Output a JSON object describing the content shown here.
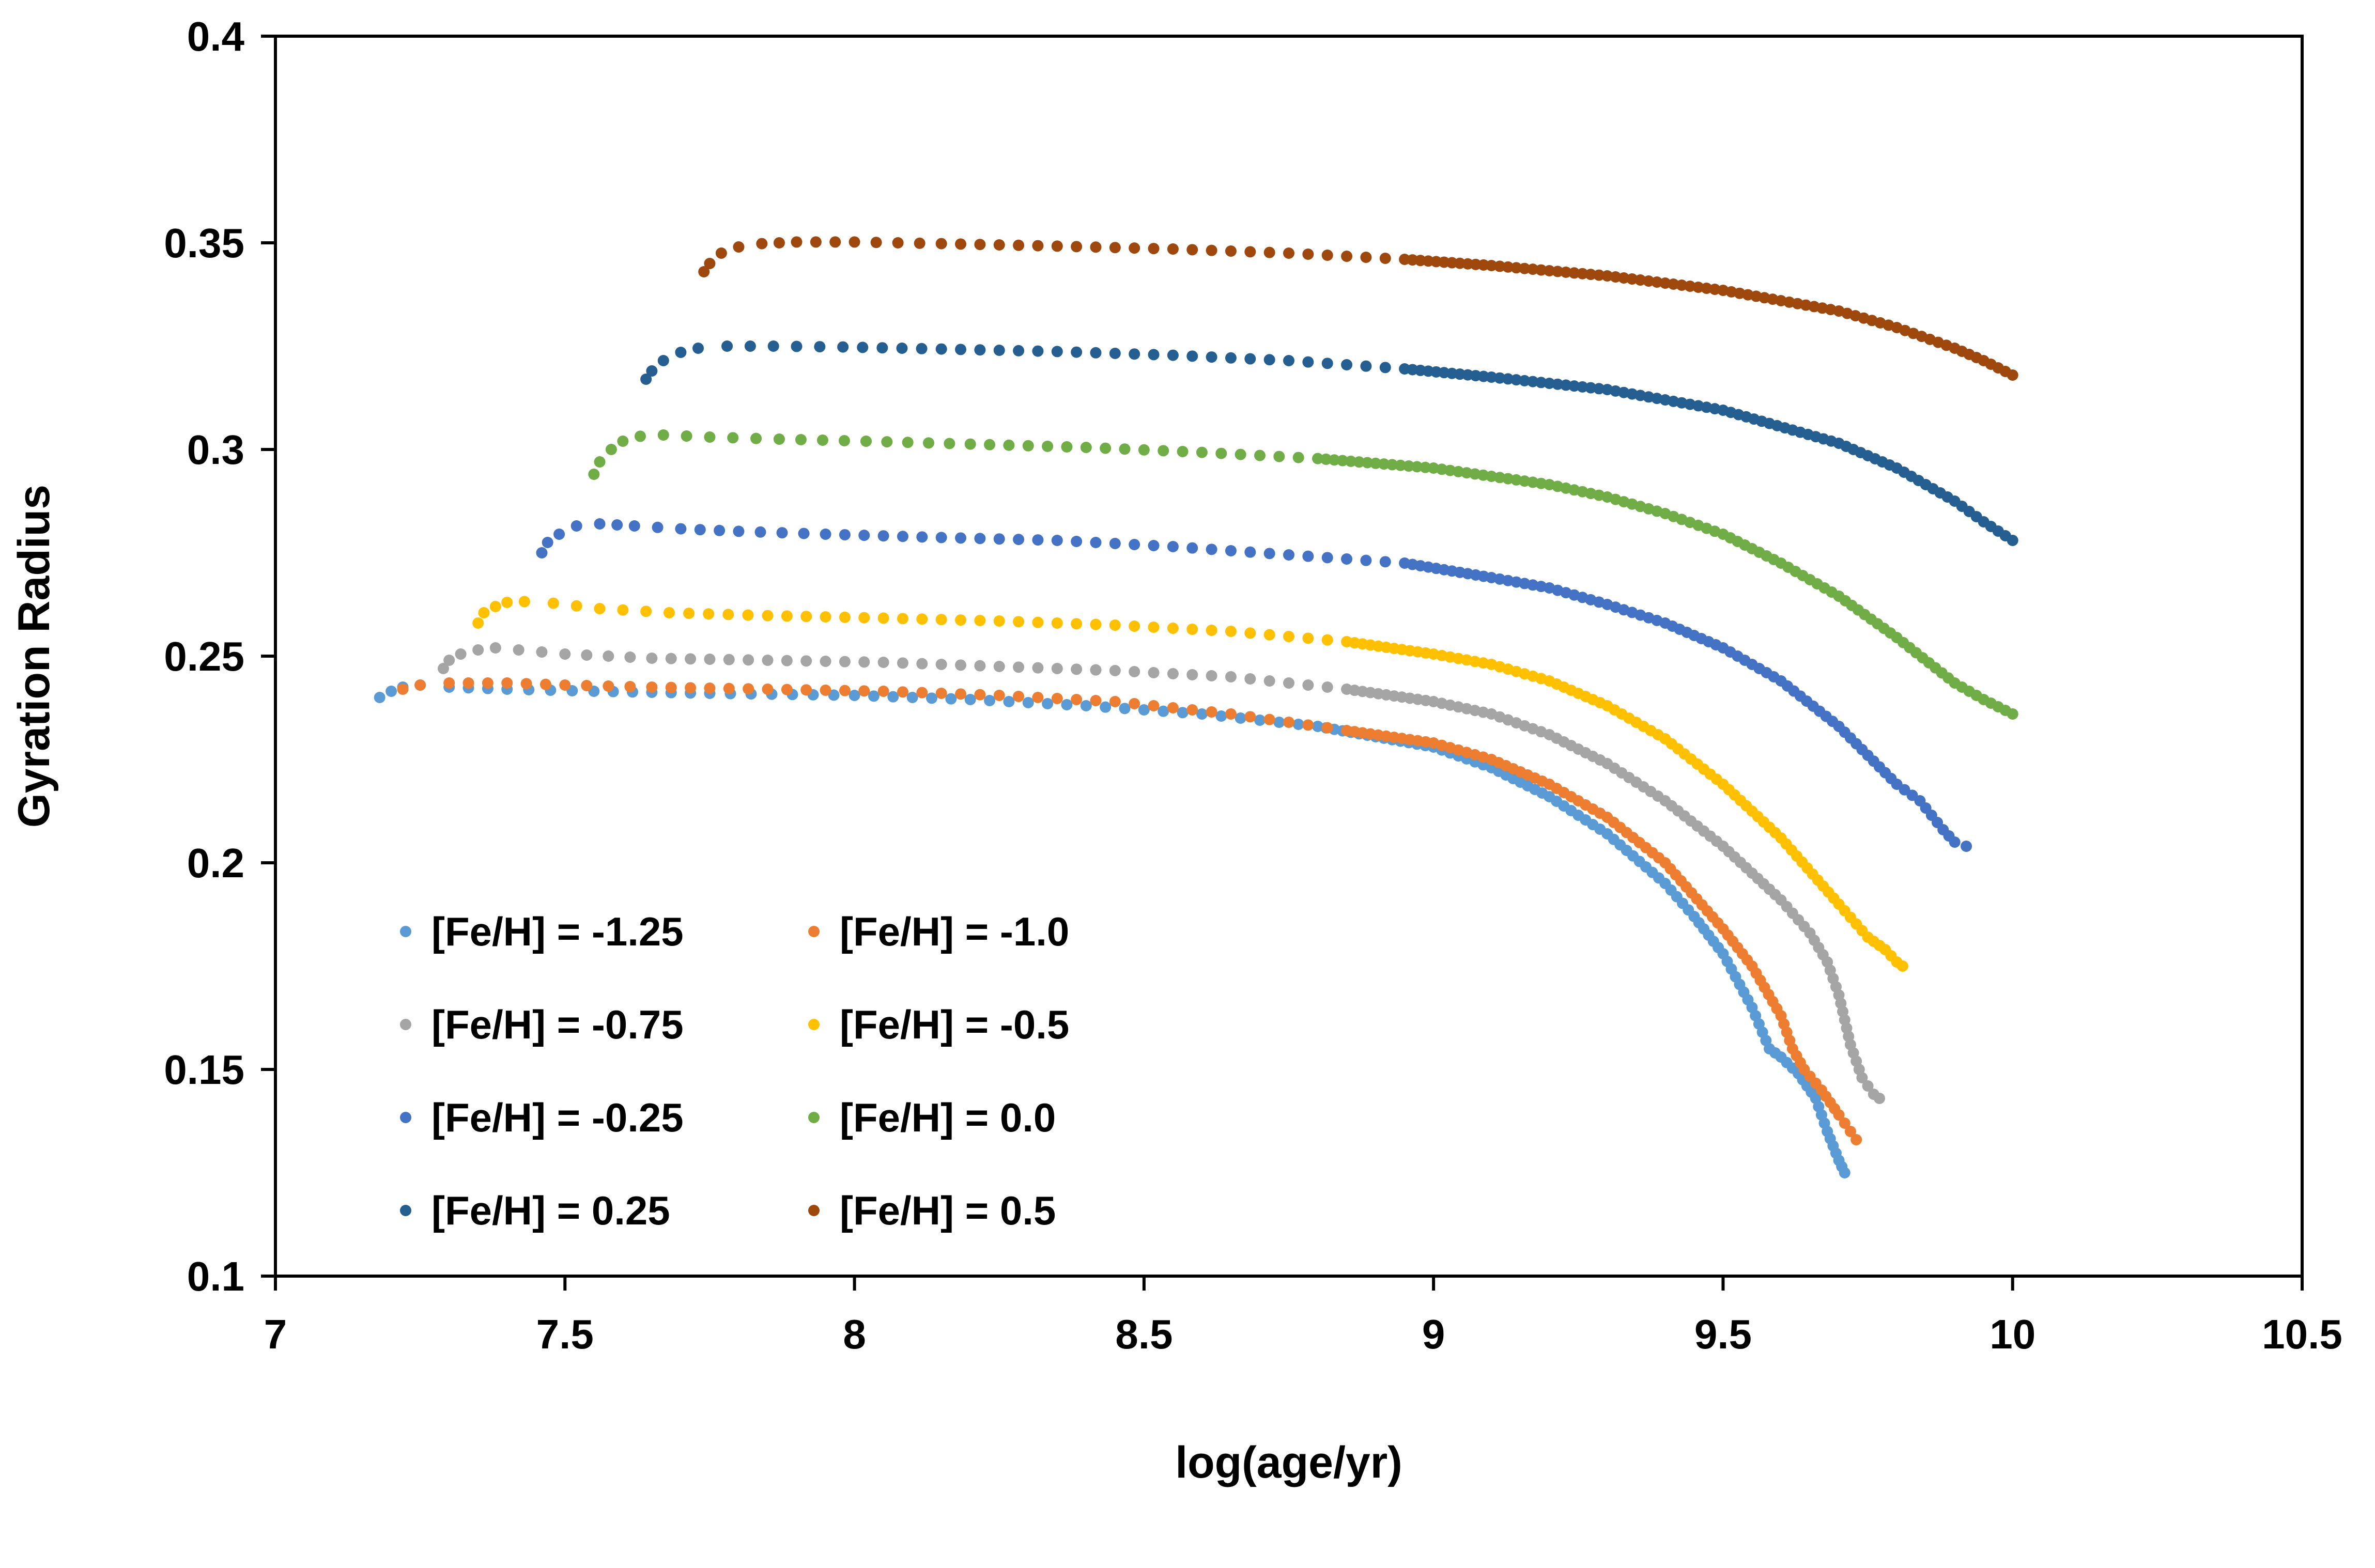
{
  "chart_data": {
    "type": "scatter",
    "title": "",
    "xlabel": "log(age/yr)",
    "ylabel": "Gyration Radius",
    "xlim": [
      7,
      10.5
    ],
    "ylim": [
      0.1,
      0.4
    ],
    "xticks": [
      7,
      7.5,
      8,
      8.5,
      9,
      9.5,
      10,
      10.5
    ],
    "yticks": [
      0.1,
      0.15,
      0.2,
      0.25,
      0.3,
      0.35,
      0.4
    ],
    "xtick_labels": [
      "7",
      "7.5",
      "8",
      "8.5",
      "9",
      "9.5",
      "10",
      "10.5"
    ],
    "ytick_labels": [
      "0.1",
      "0.15",
      "0.2",
      "0.25",
      "0.3",
      "0.35",
      "0.4"
    ],
    "grid": false,
    "legend_position": "bottom-left (inside plot, two columns)",
    "series": [
      {
        "name": "[Fe/H] = -1.25",
        "label": "[Fe/H] = -1.25",
        "color": "#5B9BD5",
        "x": [
          7.18,
          7.2,
          7.22,
          7.25,
          7.3,
          7.4,
          7.55,
          7.75,
          8.0,
          8.2,
          8.4,
          8.6,
          8.8,
          9.0,
          9.1,
          9.2,
          9.3,
          9.4,
          9.45,
          9.5,
          9.55,
          9.58,
          9.6,
          9.63,
          9.66,
          9.68,
          9.7,
          9.71
        ],
        "y": [
          0.24,
          0.2415,
          0.2425,
          0.243,
          0.2425,
          0.242,
          0.2415,
          0.241,
          0.2405,
          0.2395,
          0.238,
          0.236,
          0.233,
          0.228,
          0.223,
          0.216,
          0.207,
          0.195,
          0.187,
          0.178,
          0.165,
          0.155,
          0.153,
          0.149,
          0.143,
          0.135,
          0.128,
          0.125
        ]
      },
      {
        "name": "[Fe/H] = -1.0",
        "label": "[Fe/H] = -1.0",
        "color": "#ED7D31",
        "x": [
          7.22,
          7.25,
          7.3,
          7.4,
          7.5,
          7.65,
          7.85,
          8.05,
          8.25,
          8.45,
          8.65,
          8.85,
          9.0,
          9.1,
          9.2,
          9.3,
          9.4,
          9.5,
          9.55,
          9.6,
          9.62,
          9.64,
          9.67,
          9.7,
          9.72,
          9.73
        ],
        "y": [
          0.242,
          0.243,
          0.2435,
          0.2435,
          0.243,
          0.2425,
          0.242,
          0.2415,
          0.2405,
          0.239,
          0.236,
          0.232,
          0.229,
          0.225,
          0.219,
          0.211,
          0.2,
          0.184,
          0.175,
          0.163,
          0.155,
          0.15,
          0.145,
          0.139,
          0.135,
          0.133
        ]
      },
      {
        "name": "[Fe/H] = -0.75",
        "label": "[Fe/H] = -0.75",
        "color": "#A5A5A5",
        "x": [
          7.29,
          7.3,
          7.32,
          7.35,
          7.38,
          7.42,
          7.5,
          7.65,
          7.85,
          8.05,
          8.25,
          8.45,
          8.65,
          8.85,
          9.0,
          9.1,
          9.2,
          9.3,
          9.4,
          9.5,
          9.6,
          9.65,
          9.68,
          9.7,
          9.72,
          9.74,
          9.76,
          9.77
        ],
        "y": [
          0.247,
          0.249,
          0.2505,
          0.2515,
          0.252,
          0.2515,
          0.2505,
          0.2495,
          0.249,
          0.2485,
          0.2475,
          0.2465,
          0.245,
          0.242,
          0.239,
          0.236,
          0.231,
          0.224,
          0.215,
          0.204,
          0.191,
          0.183,
          0.176,
          0.168,
          0.156,
          0.148,
          0.144,
          0.143
        ]
      },
      {
        "name": "[Fe/H] = -0.5",
        "label": "[Fe/H] = -0.5",
        "color": "#FFC000",
        "x": [
          7.35,
          7.36,
          7.38,
          7.4,
          7.43,
          7.48,
          7.56,
          7.68,
          7.85,
          8.05,
          8.25,
          8.45,
          8.65,
          8.85,
          9.0,
          9.1,
          9.2,
          9.3,
          9.4,
          9.5,
          9.6,
          9.7,
          9.75,
          9.78,
          9.8,
          9.81
        ],
        "y": [
          0.258,
          0.2605,
          0.262,
          0.263,
          0.2632,
          0.2628,
          0.2615,
          0.2605,
          0.2598,
          0.2592,
          0.2585,
          0.2575,
          0.256,
          0.2535,
          0.2505,
          0.248,
          0.244,
          0.238,
          0.23,
          0.219,
          0.206,
          0.19,
          0.182,
          0.179,
          0.176,
          0.175
        ]
      },
      {
        "name": "[Fe/H] = -0.25",
        "label": "[Fe/H] = -0.25",
        "color": "#4472C4",
        "x": [
          7.46,
          7.47,
          7.49,
          7.52,
          7.56,
          7.62,
          7.7,
          7.8,
          7.95,
          8.15,
          8.35,
          8.55,
          8.75,
          8.95,
          9.1,
          9.2,
          9.3,
          9.4,
          9.5,
          9.6,
          9.7,
          9.75,
          9.8,
          9.84,
          9.88,
          9.9,
          9.92
        ],
        "y": [
          0.275,
          0.2775,
          0.2795,
          0.2815,
          0.282,
          0.2815,
          0.2808,
          0.2802,
          0.2795,
          0.2787,
          0.278,
          0.2765,
          0.2745,
          0.2725,
          0.269,
          0.2665,
          0.2625,
          0.258,
          0.252,
          0.244,
          0.233,
          0.226,
          0.219,
          0.215,
          0.208,
          0.205,
          0.204
        ]
      },
      {
        "name": "[Fe/H] = 0.0",
        "label": "[Fe/H] = 0.0",
        "color": "#70AD47",
        "x": [
          7.55,
          7.56,
          7.58,
          7.6,
          7.63,
          7.67,
          7.75,
          7.87,
          8.02,
          8.2,
          8.4,
          8.6,
          8.8,
          9.0,
          9.2,
          9.3,
          9.4,
          9.5,
          9.6,
          9.7,
          9.8,
          9.9,
          9.95,
          10.0
        ],
        "y": [
          0.294,
          0.297,
          0.3,
          0.302,
          0.3032,
          0.3035,
          0.303,
          0.3025,
          0.302,
          0.3013,
          0.3005,
          0.2993,
          0.2978,
          0.2955,
          0.2915,
          0.2885,
          0.2845,
          0.2795,
          0.2725,
          0.2645,
          0.2545,
          0.2435,
          0.2395,
          0.236
        ]
      },
      {
        "name": "[Fe/H] = 0.25",
        "label": "[Fe/H] = 0.25",
        "color": "#255E91",
        "x": [
          7.64,
          7.65,
          7.67,
          7.7,
          7.73,
          7.78,
          7.86,
          7.98,
          8.15,
          8.35,
          8.55,
          8.75,
          8.95,
          9.1,
          9.3,
          9.5,
          9.7,
          9.8,
          9.9,
          9.95,
          10.0
        ],
        "y": [
          0.317,
          0.319,
          0.3215,
          0.3235,
          0.3245,
          0.325,
          0.325,
          0.3248,
          0.3243,
          0.3237,
          0.3228,
          0.3215,
          0.3195,
          0.3175,
          0.3145,
          0.3095,
          0.3015,
          0.2955,
          0.2875,
          0.2825,
          0.278
        ]
      },
      {
        "name": "[Fe/H] = 0.5",
        "label": "[Fe/H] = 0.5",
        "color": "#9E480E",
        "x": [
          7.74,
          7.75,
          7.77,
          7.8,
          7.84,
          7.9,
          8.0,
          8.15,
          8.35,
          8.55,
          8.75,
          8.95,
          9.1,
          9.3,
          9.5,
          9.7,
          9.8,
          9.9,
          9.95,
          10.0
        ],
        "y": [
          0.343,
          0.345,
          0.3475,
          0.349,
          0.3498,
          0.3502,
          0.3502,
          0.3498,
          0.3492,
          0.3485,
          0.3475,
          0.346,
          0.3445,
          0.342,
          0.3385,
          0.3335,
          0.3295,
          0.3245,
          0.3215,
          0.318
        ]
      }
    ]
  }
}
